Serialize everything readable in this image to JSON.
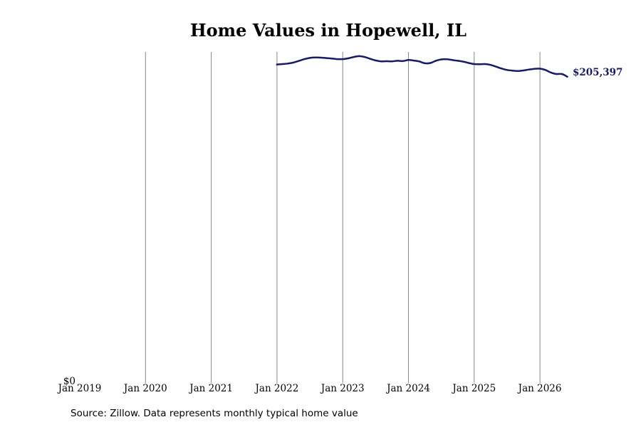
{
  "chart_data": {
    "type": "line",
    "title": "Home Values in Hopewell, IL",
    "xlabel": "",
    "ylabel": "",
    "x_ticks": [
      "Jan 2019",
      "Jan 2020",
      "Jan 2021",
      "Jan 2022",
      "Jan 2023",
      "Jan 2024",
      "Jan 2025",
      "Jan 2026"
    ],
    "y_ticks": [
      {
        "value": 0,
        "label": "$0"
      }
    ],
    "ylim": [
      0,
      222000
    ],
    "xlim": [
      "2019-01",
      "2026-11"
    ],
    "grid": "vertical",
    "line_color": "#1a1a66",
    "grid_color": "#888888",
    "end_label": "$205,397",
    "series": [
      {
        "points": [
          [
            "2022-01",
            213600
          ],
          [
            "2022-02",
            213900
          ],
          [
            "2022-03",
            214200
          ],
          [
            "2022-04",
            214900
          ],
          [
            "2022-05",
            216000
          ],
          [
            "2022-06",
            217200
          ],
          [
            "2022-07",
            218000
          ],
          [
            "2022-08",
            218300
          ],
          [
            "2022-09",
            218200
          ],
          [
            "2022-10",
            217900
          ],
          [
            "2022-11",
            217600
          ],
          [
            "2022-12",
            217200
          ],
          [
            "2023-01",
            217200
          ],
          [
            "2023-02",
            217700
          ],
          [
            "2023-03",
            218600
          ],
          [
            "2023-04",
            219200
          ],
          [
            "2023-05",
            218600
          ],
          [
            "2023-06",
            217400
          ],
          [
            "2023-07",
            216300
          ],
          [
            "2023-08",
            215700
          ],
          [
            "2023-09",
            215800
          ],
          [
            "2023-10",
            215700
          ],
          [
            "2023-11",
            216100
          ],
          [
            "2023-12",
            215900
          ],
          [
            "2024-01",
            216600
          ],
          [
            "2024-02",
            216200
          ],
          [
            "2024-03",
            215600
          ],
          [
            "2024-04",
            214400
          ],
          [
            "2024-05",
            214600
          ],
          [
            "2024-06",
            216100
          ],
          [
            "2024-07",
            217000
          ],
          [
            "2024-08",
            217100
          ],
          [
            "2024-09",
            216600
          ],
          [
            "2024-10",
            216100
          ],
          [
            "2024-11",
            215500
          ],
          [
            "2024-12",
            214600
          ],
          [
            "2025-01",
            213900
          ],
          [
            "2025-02",
            213800
          ],
          [
            "2025-03",
            213900
          ],
          [
            "2025-04",
            213300
          ],
          [
            "2025-05",
            212100
          ],
          [
            "2025-06",
            210900
          ],
          [
            "2025-07",
            209900
          ],
          [
            "2025-08",
            209500
          ],
          [
            "2025-09",
            209200
          ],
          [
            "2025-10",
            209600
          ],
          [
            "2025-11",
            210200
          ],
          [
            "2025-12",
            210700
          ],
          [
            "2026-01",
            210800
          ],
          [
            "2026-02",
            209900
          ],
          [
            "2026-03",
            208200
          ],
          [
            "2026-04",
            207200
          ],
          [
            "2026-05",
            207200
          ],
          [
            "2026-06",
            205397
          ]
        ]
      }
    ]
  },
  "footer": {
    "source": "Source: Zillow. Data represents monthly typical home value"
  }
}
